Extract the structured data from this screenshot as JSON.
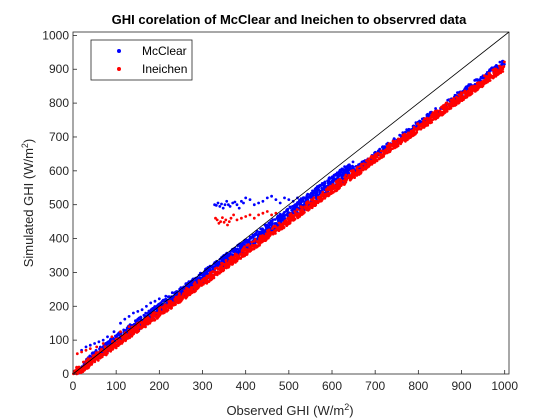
{
  "chart_data": {
    "type": "scatter",
    "title": "GHI corelation of McClear and Ineichen to observred data",
    "xlabel_main": "Observed GHI (W/m",
    "xlabel_sup": "2",
    "xlabel_tail": ")",
    "ylabel_main": "Simulated GHI (W/m",
    "ylabel_sup": "2",
    "ylabel_tail": ")",
    "xlim": [
      0,
      1010
    ],
    "ylim": [
      0,
      1010
    ],
    "xticks": [
      0,
      100,
      200,
      300,
      400,
      500,
      600,
      700,
      800,
      900,
      1000
    ],
    "yticks": [
      0,
      100,
      200,
      300,
      400,
      500,
      600,
      700,
      800,
      900,
      1000
    ],
    "grid": false,
    "legend_position": "top-left",
    "reference_line": {
      "x": [
        0,
        1010
      ],
      "y": [
        0,
        1010
      ],
      "color": "#000000"
    },
    "series": [
      {
        "name": "McClear",
        "color": "#0000ff",
        "bands": [
          {
            "x": [
              0,
              1000
            ],
            "y": [
              0,
              922
            ],
            "spread": 10
          },
          {
            "x": [
              30,
              650
            ],
            "y": [
              38,
              620
            ],
            "spread": 12
          }
        ],
        "points": [
          [
            20,
            70
          ],
          [
            30,
            80
          ],
          [
            40,
            85
          ],
          [
            50,
            90
          ],
          [
            60,
            95
          ],
          [
            70,
            100
          ],
          [
            80,
            110
          ],
          [
            95,
            125
          ],
          [
            110,
            150
          ],
          [
            120,
            162
          ],
          [
            130,
            170
          ],
          [
            140,
            180
          ],
          [
            150,
            185
          ],
          [
            160,
            190
          ],
          [
            170,
            200
          ],
          [
            180,
            210
          ],
          [
            190,
            215
          ],
          [
            200,
            222
          ],
          [
            215,
            230
          ],
          [
            230,
            240
          ],
          [
            250,
            255
          ],
          [
            270,
            268
          ],
          [
            290,
            280
          ],
          [
            310,
            300
          ],
          [
            325,
            310
          ],
          [
            328,
            500
          ],
          [
            332,
            498
          ],
          [
            336,
            505
          ],
          [
            340,
            495
          ],
          [
            344,
            502
          ],
          [
            348,
            490
          ],
          [
            352,
            500
          ],
          [
            356,
            510
          ],
          [
            360,
            500
          ],
          [
            364,
            495
          ],
          [
            370,
            505
          ],
          [
            375,
            508
          ],
          [
            380,
            500
          ],
          [
            385,
            490
          ],
          [
            390,
            510
          ],
          [
            395,
            505
          ],
          [
            400,
            520
          ],
          [
            410,
            515
          ],
          [
            420,
            500
          ],
          [
            430,
            505
          ],
          [
            440,
            510
          ],
          [
            450,
            520
          ],
          [
            460,
            525
          ],
          [
            470,
            515
          ],
          [
            480,
            505
          ],
          [
            490,
            520
          ],
          [
            500,
            515
          ],
          [
            510,
            510
          ],
          [
            520,
            520
          ]
        ]
      },
      {
        "name": "Ineichen",
        "color": "#ff0000",
        "bands": [
          {
            "x": [
              0,
              1000
            ],
            "y": [
              0,
              910
            ],
            "spread": 14
          },
          {
            "x": [
              5,
              1000
            ],
            "y": [
              0,
              905
            ],
            "spread": 8
          }
        ],
        "points": [
          [
            10,
            60
          ],
          [
            20,
            65
          ],
          [
            30,
            70
          ],
          [
            40,
            75
          ],
          [
            55,
            80
          ],
          [
            70,
            90
          ],
          [
            90,
            110
          ],
          [
            110,
            125
          ],
          [
            130,
            140
          ],
          [
            150,
            150
          ],
          [
            170,
            165
          ],
          [
            190,
            180
          ],
          [
            210,
            195
          ],
          [
            230,
            210
          ],
          [
            250,
            225
          ],
          [
            270,
            240
          ],
          [
            290,
            255
          ],
          [
            330,
            460
          ],
          [
            334,
            455
          ],
          [
            338,
            445
          ],
          [
            342,
            450
          ],
          [
            346,
            462
          ],
          [
            350,
            448
          ],
          [
            354,
            455
          ],
          [
            358,
            440
          ],
          [
            362,
            450
          ],
          [
            366,
            460
          ],
          [
            372,
            470
          ],
          [
            380,
            455
          ],
          [
            390,
            460
          ],
          [
            400,
            465
          ],
          [
            410,
            470
          ],
          [
            420,
            460
          ],
          [
            430,
            470
          ],
          [
            440,
            475
          ],
          [
            450,
            480
          ],
          [
            460,
            470
          ],
          [
            470,
            475
          ]
        ]
      }
    ]
  }
}
